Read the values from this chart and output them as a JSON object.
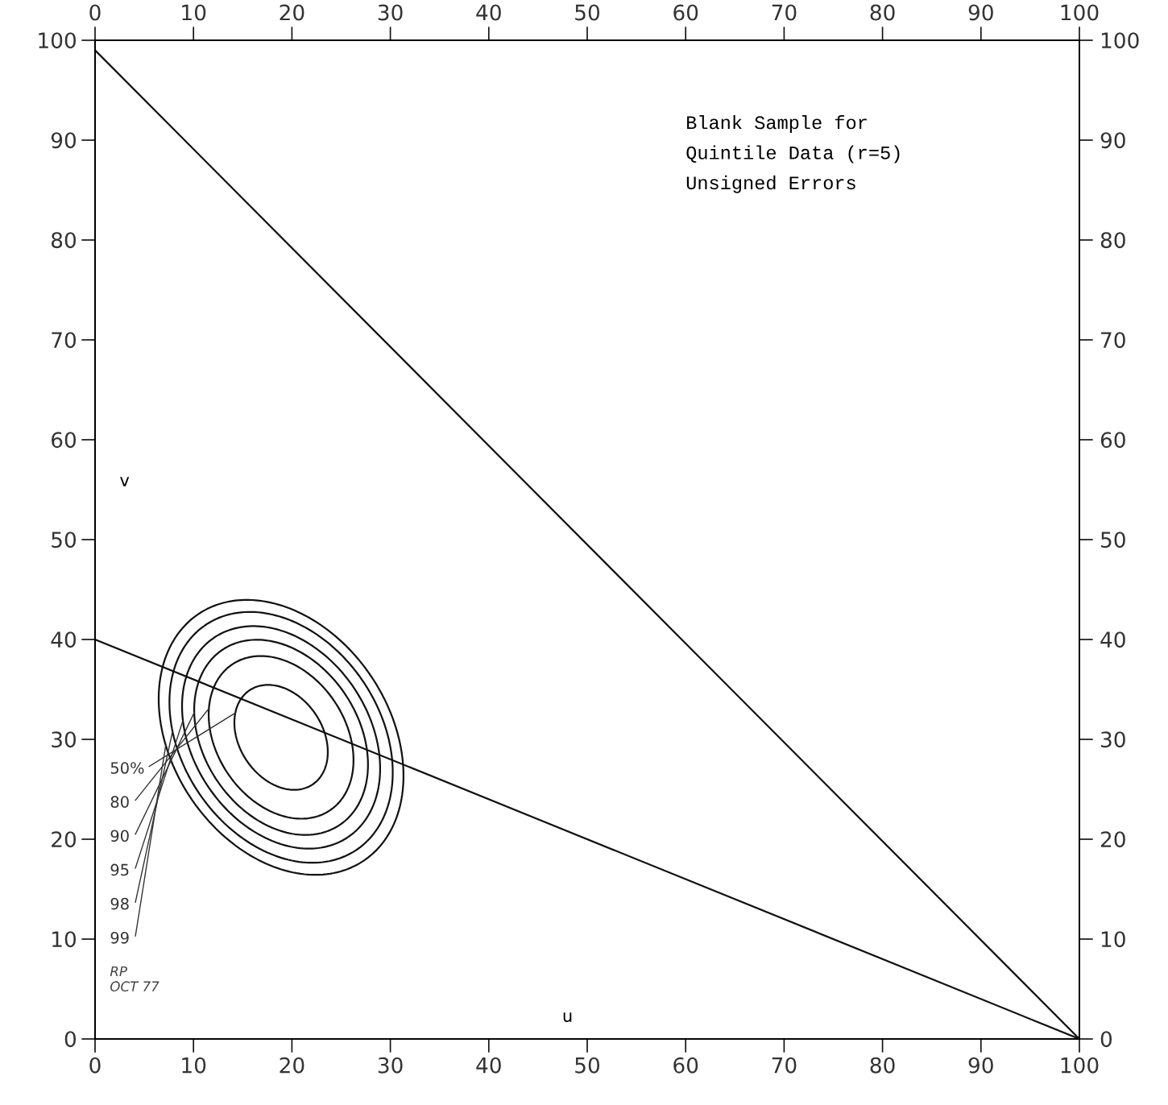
{
  "chart_data": {
    "type": "line",
    "title": "Blank Sample for\nQuintile Data (r=5)\nUnsigned Errors",
    "xlabel": "u",
    "ylabel": "v",
    "xlim": [
      0,
      100
    ],
    "xticks": [
      0,
      10,
      20,
      30,
      40,
      50,
      60,
      70,
      80,
      90,
      100
    ],
    "ylim": [
      0,
      100
    ],
    "yticks": [
      0,
      10,
      20,
      30,
      40,
      50,
      60,
      70,
      80,
      90,
      100
    ],
    "x2lim": [
      0,
      100
    ],
    "x2ticks": [
      0,
      10,
      20,
      30,
      40,
      50,
      60,
      70,
      80,
      90,
      100
    ],
    "y2lim": [
      0,
      100
    ],
    "y2ticks": [
      0,
      10,
      20,
      30,
      40,
      50,
      60,
      70,
      80,
      90,
      100
    ],
    "x": [
      0,
      100
    ],
    "grid": false,
    "marker": "none",
    "line_style": "solid",
    "series": [
      {
        "color": "#111111",
        "values": [
          99,
          0
        ]
      },
      {
        "color": "#111111",
        "values": [
          40,
          0
        ]
      }
    ],
    "annotations": [
      "50%",
      "80",
      "90",
      "95",
      "98",
      "99",
      "RP\nOCT 77"
    ]
  }
}
